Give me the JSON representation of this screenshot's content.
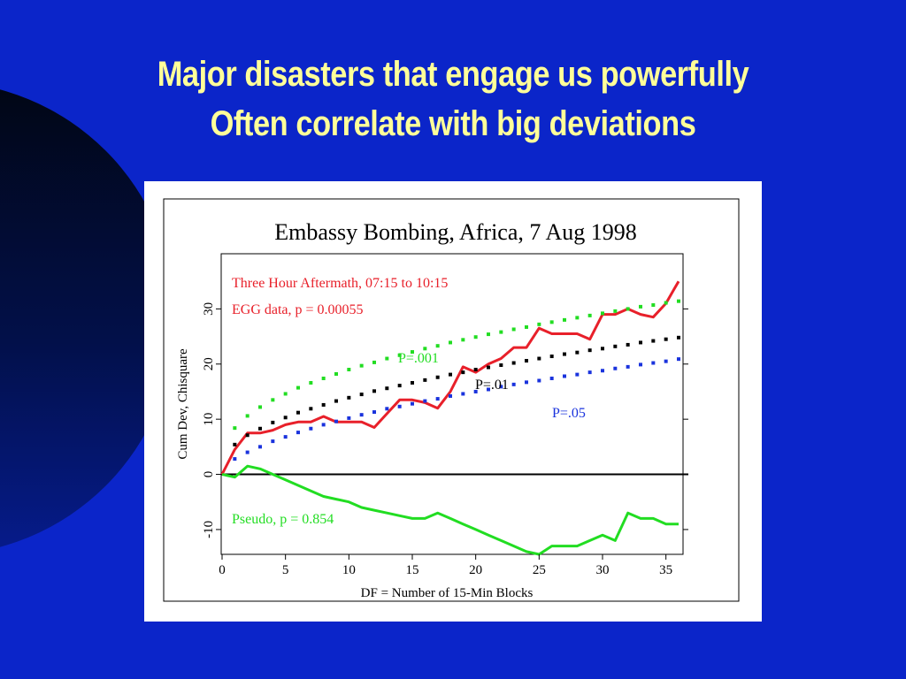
{
  "slide": {
    "title_line1": "Major disasters that engage us powerfully",
    "title_line2": "Often correlate with big deviations",
    "colors": {
      "background": "#0b25c9",
      "title": "#ffff99",
      "arc_dark": "#020c2e"
    }
  },
  "chart_data": {
    "type": "line",
    "title": "Embassy Bombing, Africa, 7 Aug 1998",
    "xlabel": "DF = Number of 15-Min Blocks",
    "ylabel": "Cum Dev, Chisquare",
    "xlim": [
      0,
      36
    ],
    "ylim": [
      -14.5,
      40
    ],
    "x_ticks": [
      0,
      5,
      10,
      15,
      20,
      25,
      30,
      35
    ],
    "y_ticks": [
      -10,
      0,
      10,
      20,
      30
    ],
    "grid": false,
    "annotations": {
      "egg_label_1": "Three Hour Aftermath, 07:15 to 10:15",
      "egg_label_2": "EGG data, p = 0.00055",
      "pseudo_label": "Pseudo, p = 0.854",
      "p001_label": "P=.001",
      "p01_label": "P=.01",
      "p05_label": "P=.05"
    },
    "series": [
      {
        "color": "#e8202a",
        "style": "solid",
        "x": [
          0,
          1,
          2,
          3,
          4,
          5,
          6,
          7,
          8,
          9,
          10,
          11,
          12,
          13,
          14,
          15,
          16,
          17,
          18,
          19,
          20,
          21,
          22,
          23,
          24,
          25,
          26,
          27,
          28,
          29,
          30,
          31,
          32,
          33,
          34,
          35,
          36
        ],
        "values": [
          0,
          4.5,
          7.5,
          7.5,
          8,
          9,
          9.5,
          9.5,
          10.5,
          9.5,
          9.5,
          9.5,
          8.5,
          11,
          13.5,
          13.5,
          13,
          12,
          15,
          19.5,
          18.5,
          20,
          21,
          23,
          23,
          26.5,
          25.5,
          25.5,
          25.5,
          24.5,
          29,
          29,
          30,
          29,
          28.5,
          31,
          35
        ]
      },
      {
        "color": "#22dd22",
        "style": "solid",
        "x": [
          0,
          1,
          2,
          3,
          4,
          5,
          6,
          7,
          8,
          9,
          10,
          11,
          12,
          13,
          14,
          15,
          16,
          17,
          18,
          19,
          20,
          21,
          22,
          23,
          24,
          25,
          26,
          27,
          28,
          29,
          30,
          31,
          32,
          33,
          34,
          35,
          36
        ],
        "values": [
          0,
          -0.5,
          1.5,
          1,
          0,
          -1,
          -2,
          -3,
          -4,
          -4.5,
          -5,
          -6,
          -6.5,
          -7,
          -7.5,
          -8,
          -8,
          -7,
          -8,
          -9,
          -10,
          -11,
          -12,
          -13,
          -14,
          -14.5,
          -13,
          -13,
          -13,
          -12,
          -11,
          -12,
          -7,
          -8,
          -8,
          -9,
          -9
        ]
      },
      {
        "color": "#22dd22",
        "style": "dotted",
        "x": [
          1,
          2,
          3,
          4,
          5,
          6,
          7,
          8,
          9,
          10,
          11,
          12,
          13,
          14,
          15,
          16,
          17,
          18,
          19,
          20,
          21,
          22,
          23,
          24,
          25,
          26,
          27,
          28,
          29,
          30,
          31,
          32,
          33,
          34,
          35,
          36
        ],
        "values": [
          8.4,
          10.6,
          12.2,
          13.5,
          14.6,
          15.7,
          16.6,
          17.4,
          18.2,
          19,
          19.7,
          20.3,
          21,
          21.6,
          22.2,
          22.8,
          23.3,
          23.9,
          24.4,
          24.9,
          25.4,
          25.8,
          26.3,
          26.7,
          27.2,
          27.6,
          28,
          28.4,
          28.8,
          29.2,
          29.6,
          30,
          30.4,
          30.7,
          31.1,
          31.4
        ]
      },
      {
        "color": "#000000",
        "style": "dotted",
        "x": [
          1,
          2,
          3,
          4,
          5,
          6,
          7,
          8,
          9,
          10,
          11,
          12,
          13,
          14,
          15,
          16,
          17,
          18,
          19,
          20,
          21,
          22,
          23,
          24,
          25,
          26,
          27,
          28,
          29,
          30,
          31,
          32,
          33,
          34,
          35,
          36
        ],
        "values": [
          5.4,
          7.1,
          8.3,
          9.4,
          10.3,
          11.2,
          11.9,
          12.6,
          13.3,
          13.9,
          14.5,
          15.1,
          15.6,
          16.1,
          16.6,
          17.1,
          17.6,
          18.1,
          18.5,
          19,
          19.4,
          19.8,
          20.2,
          20.6,
          21,
          21.4,
          21.8,
          22.1,
          22.5,
          22.8,
          23.2,
          23.5,
          23.9,
          24.2,
          24.5,
          24.8
        ]
      },
      {
        "color": "#1a33dd",
        "style": "dotted",
        "x": [
          1,
          2,
          3,
          4,
          5,
          6,
          7,
          8,
          9,
          10,
          11,
          12,
          13,
          14,
          15,
          16,
          17,
          18,
          19,
          20,
          21,
          22,
          23,
          24,
          25,
          26,
          27,
          28,
          29,
          30,
          31,
          32,
          33,
          34,
          35,
          36
        ],
        "values": [
          2.8,
          4,
          5,
          6,
          6.8,
          7.6,
          8.3,
          9,
          9.6,
          10.2,
          10.8,
          11.3,
          11.9,
          12.3,
          12.8,
          13.3,
          13.7,
          14.2,
          14.6,
          15,
          15.4,
          15.9,
          16.3,
          16.7,
          17,
          17.4,
          17.8,
          18.1,
          18.5,
          18.8,
          19.2,
          19.5,
          19.9,
          20.2,
          20.5,
          20.9
        ]
      }
    ]
  }
}
